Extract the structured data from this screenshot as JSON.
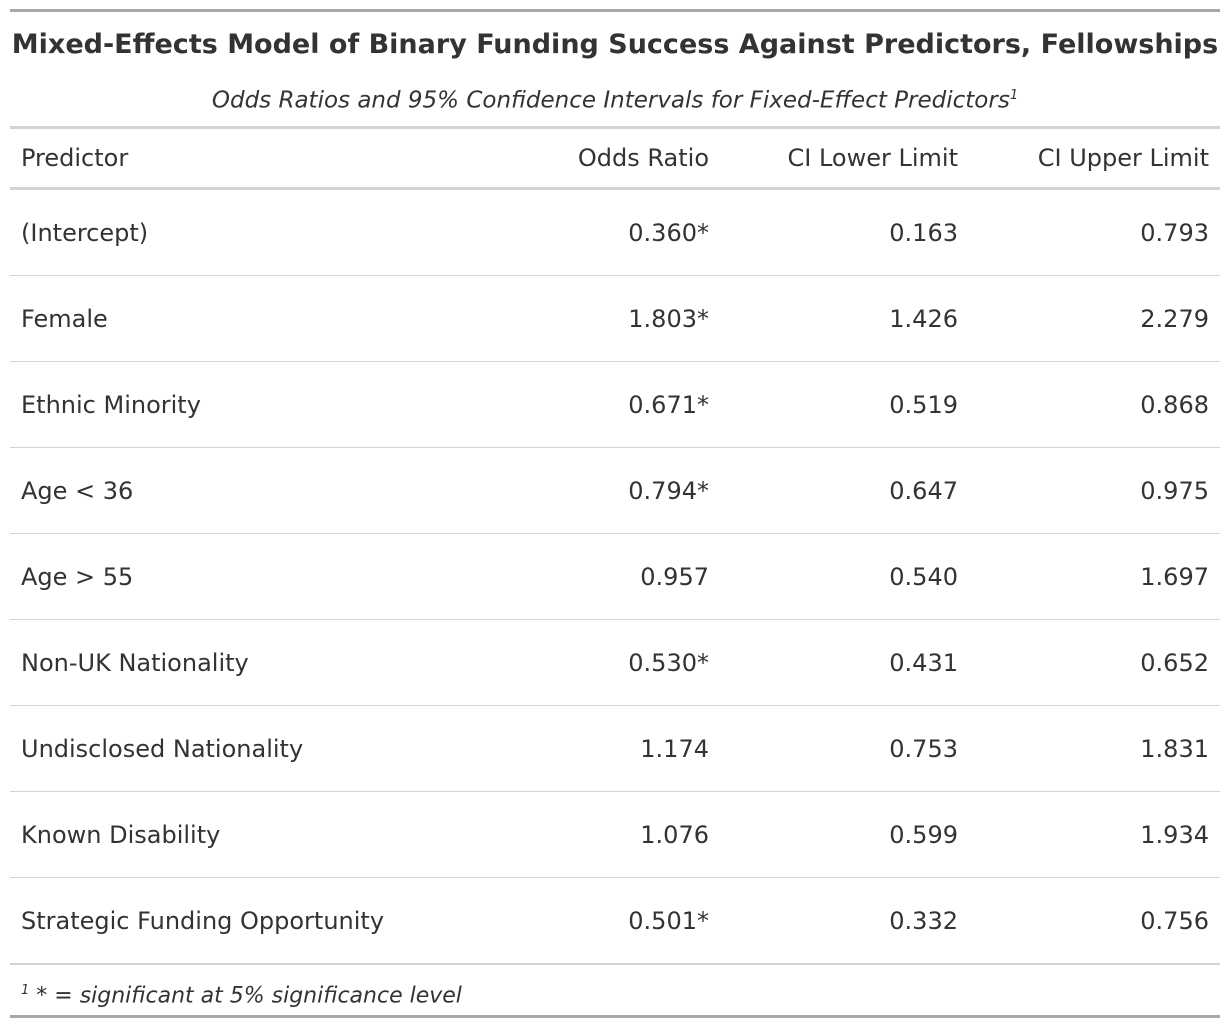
{
  "header": {
    "title": "Mixed-Effects Model of Binary Funding Success Against Predictors, Fellowships",
    "subtitle": "Odds Ratios and 95% Confidence Intervals for Fixed-Effect Predictors",
    "footnote_marker": "1"
  },
  "table": {
    "columns": [
      "Predictor",
      "Odds Ratio",
      "CI Lower Limit",
      "CI Upper Limit"
    ],
    "rows": [
      [
        "(Intercept)",
        "0.360*",
        "0.163",
        "0.793"
      ],
      [
        "Female",
        "1.803*",
        "1.426",
        "2.279"
      ],
      [
        "Ethnic Minority",
        "0.671*",
        "0.519",
        "0.868"
      ],
      [
        "Age < 36",
        "0.794*",
        "0.647",
        "0.975"
      ],
      [
        "Age > 55",
        "0.957",
        "0.540",
        "1.697"
      ],
      [
        "Non-UK Nationality",
        "0.530*",
        "0.431",
        "0.652"
      ],
      [
        "Undisclosed Nationality",
        "1.174",
        "0.753",
        "1.831"
      ],
      [
        "Known Disability",
        "1.076",
        "0.599",
        "1.934"
      ],
      [
        "Strategic Funding Opportunity",
        "0.501*",
        "0.332",
        "0.756"
      ]
    ]
  },
  "footnote": {
    "text": "* = significant at 5% significance level"
  }
}
